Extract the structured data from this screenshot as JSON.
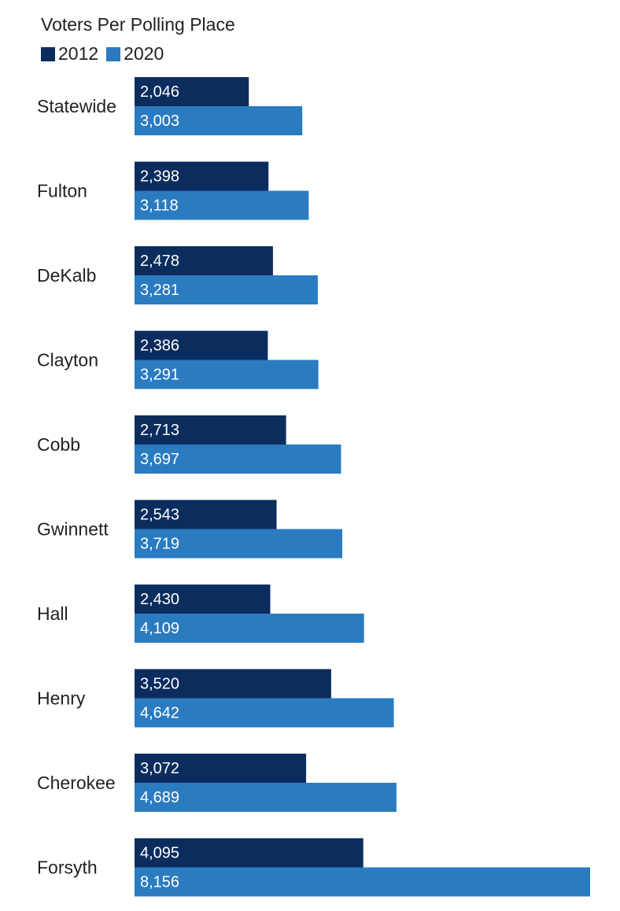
{
  "chart_data": {
    "type": "bar",
    "orientation": "horizontal",
    "title": "Voters Per Polling Place",
    "xlabel": "",
    "ylabel": "",
    "categories": [
      "Statewide",
      "Fulton",
      "DeKalb",
      "Clayton",
      "Cobb",
      "Gwinnett",
      "Hall",
      "Henry",
      "Cherokee",
      "Forsyth"
    ],
    "series": [
      {
        "name": "2012",
        "color": "#0b2d5e",
        "values": [
          2046,
          2398,
          2478,
          2386,
          2713,
          2543,
          2430,
          3520,
          3072,
          4095
        ],
        "labels": [
          "2,046",
          "2,398",
          "2,478",
          "2,386",
          "2,713",
          "2,543",
          "2,430",
          "3,520",
          "3,072",
          "4,095"
        ]
      },
      {
        "name": "2020",
        "color": "#2b7bc0",
        "values": [
          3003,
          3118,
          3281,
          3291,
          3697,
          3719,
          4109,
          4642,
          4689,
          8156
        ],
        "labels": [
          "3,003",
          "3,118",
          "3,281",
          "3,291",
          "3,697",
          "3,719",
          "4,109",
          "4,642",
          "4,689",
          "8,156"
        ]
      }
    ],
    "xlim": [
      0,
      8156
    ],
    "grid": false,
    "legend_position": "top-left"
  }
}
